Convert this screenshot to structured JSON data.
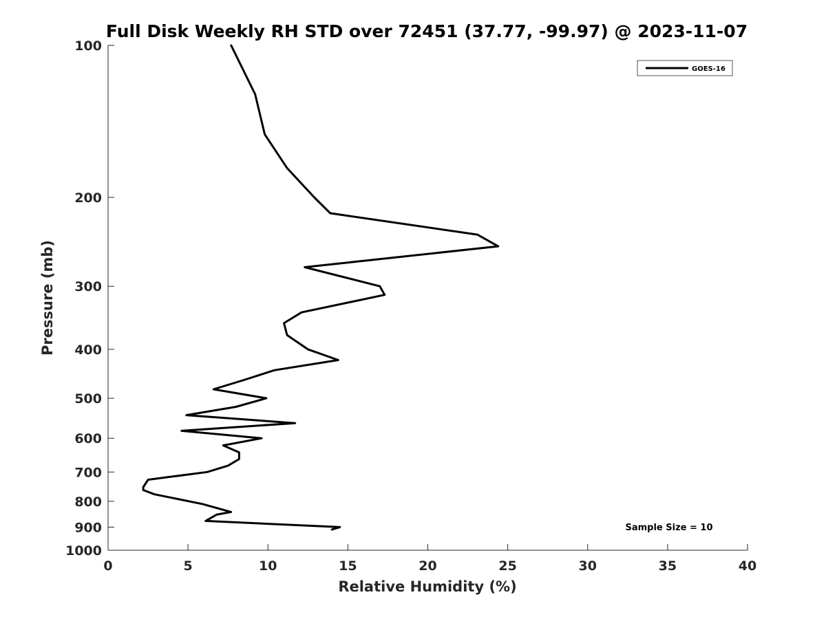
{
  "chart_data": {
    "type": "line",
    "title": "Full Disk Weekly RH STD over 72451 (37.77, -99.97) @ 2023-11-07",
    "xlabel": "Relative Humidity (%)",
    "ylabel": "Pressure (mb)",
    "xlim": [
      0,
      40
    ],
    "ylim": [
      100,
      1000
    ],
    "yscale": "log",
    "y_reversed": true,
    "xticks": [
      0,
      5,
      10,
      15,
      20,
      25,
      30,
      35,
      40
    ],
    "xtick_labels": [
      "0",
      "5",
      "10",
      "15",
      "20",
      "25",
      "30",
      "35",
      "40"
    ],
    "yticks": [
      100,
      200,
      300,
      400,
      500,
      600,
      700,
      800,
      900,
      1000
    ],
    "ytick_labels": [
      "100",
      "200",
      "300",
      "400",
      "500",
      "600",
      "700",
      "800",
      "900",
      "1000"
    ],
    "grid": false,
    "legend_position": "top-right",
    "annotation": "Sample Size = 10",
    "series": [
      {
        "name": "GOES-16",
        "color": "#000000",
        "points": [
          {
            "x": 7.7,
            "p": 100
          },
          {
            "x": 9.2,
            "p": 125
          },
          {
            "x": 9.8,
            "p": 150
          },
          {
            "x": 11.2,
            "p": 175
          },
          {
            "x": 12.9,
            "p": 200
          },
          {
            "x": 13.9,
            "p": 215
          },
          {
            "x": 23.1,
            "p": 237
          },
          {
            "x": 24.4,
            "p": 250
          },
          {
            "x": 12.3,
            "p": 275
          },
          {
            "x": 17.0,
            "p": 300
          },
          {
            "x": 17.3,
            "p": 312
          },
          {
            "x": 12.1,
            "p": 338
          },
          {
            "x": 11.0,
            "p": 355
          },
          {
            "x": 11.2,
            "p": 375
          },
          {
            "x": 12.5,
            "p": 400
          },
          {
            "x": 14.4,
            "p": 420
          },
          {
            "x": 10.4,
            "p": 440
          },
          {
            "x": 8.5,
            "p": 460
          },
          {
            "x": 6.6,
            "p": 480
          },
          {
            "x": 9.9,
            "p": 500
          },
          {
            "x": 8.0,
            "p": 520
          },
          {
            "x": 4.9,
            "p": 540
          },
          {
            "x": 11.7,
            "p": 560
          },
          {
            "x": 4.6,
            "p": 580
          },
          {
            "x": 9.6,
            "p": 600
          },
          {
            "x": 7.2,
            "p": 620
          },
          {
            "x": 8.2,
            "p": 640
          },
          {
            "x": 8.2,
            "p": 660
          },
          {
            "x": 7.5,
            "p": 680
          },
          {
            "x": 6.2,
            "p": 700
          },
          {
            "x": 2.5,
            "p": 725
          },
          {
            "x": 2.2,
            "p": 750
          },
          {
            "x": 2.2,
            "p": 760
          },
          {
            "x": 2.9,
            "p": 775
          },
          {
            "x": 5.9,
            "p": 810
          },
          {
            "x": 7.7,
            "p": 840
          },
          {
            "x": 6.8,
            "p": 850
          },
          {
            "x": 6.1,
            "p": 875
          },
          {
            "x": 14.5,
            "p": 900
          },
          {
            "x": 14.0,
            "p": 910
          }
        ]
      }
    ]
  }
}
